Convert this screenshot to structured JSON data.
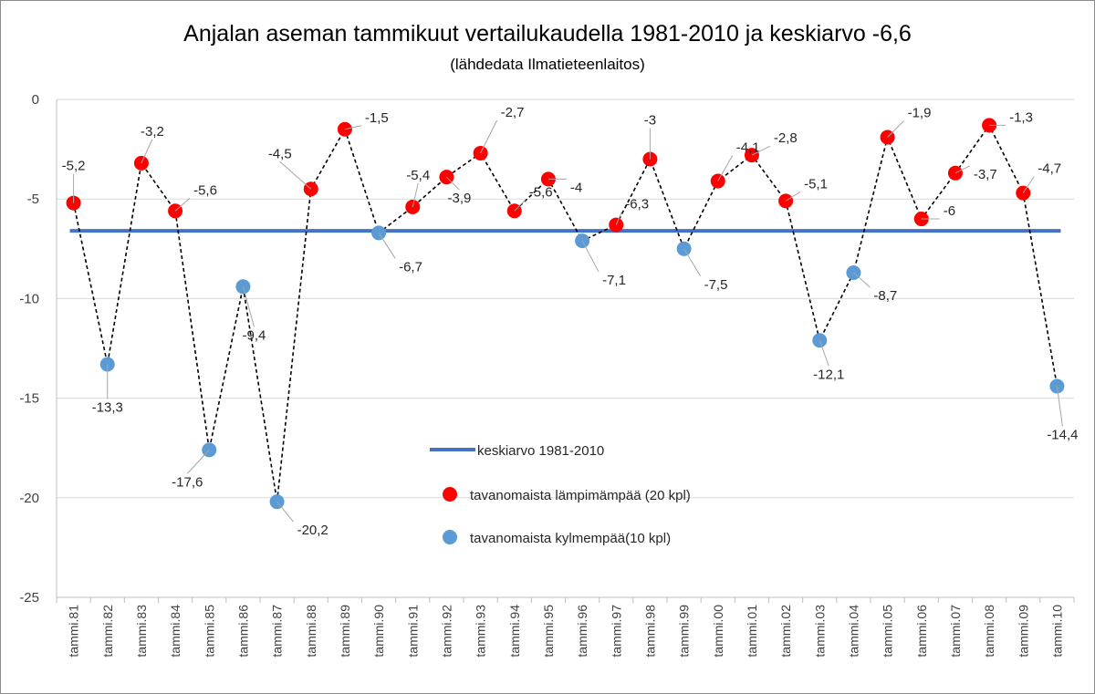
{
  "chart_data": {
    "type": "line",
    "title": "Anjalan aseman tammikuut vertailukaudella 1981-2010 ja keskiarvo -6,6",
    "subtitle": "(lähdedata Ilmatieteenlaitos)",
    "xlabel": "",
    "ylabel": "",
    "ylim": [
      -25,
      0
    ],
    "yticks": [
      0,
      -5,
      -10,
      -15,
      -20,
      -25
    ],
    "grid": true,
    "legend_position": "inside-bottom-center",
    "categories": [
      "tammi.81",
      "tammi.82",
      "tammi.83",
      "tammi.84",
      "tammi.85",
      "tammi.86",
      "tammi.87",
      "tammi.88",
      "tammi.89",
      "tammi.90",
      "tammi.91",
      "tammi.92",
      "tammi.93",
      "tammi.94",
      "tammi.95",
      "tammi.96",
      "tammi.97",
      "tammi.98",
      "tammi.99",
      "tammi.00",
      "tammi.01",
      "tammi.02",
      "tammi.03",
      "tammi.04",
      "tammi.05",
      "tammi.06",
      "tammi.07",
      "tammi.08",
      "tammi.09",
      "tammi.10"
    ],
    "values": [
      -5.2,
      -13.3,
      -3.2,
      -5.6,
      -17.6,
      -9.4,
      -20.2,
      -4.5,
      -1.5,
      -6.7,
      -5.4,
      -3.9,
      -2.7,
      -5.6,
      -4,
      -7.1,
      -6.3,
      -3,
      -7.5,
      -4.1,
      -2.8,
      -5.1,
      -12.1,
      -8.7,
      -1.9,
      -6,
      -3.7,
      -1.3,
      -4.7,
      -14.4
    ],
    "value_labels": [
      "-5,2",
      "-13,3",
      "-3,2",
      "-5,6",
      "-17,6",
      "-9,4",
      "-20,2",
      "-4,5",
      "-1,5",
      "-6,7",
      "-5,4",
      "-3,9",
      "-2,7",
      "-5,6",
      "-4",
      "-7,1",
      "-6,3",
      "-3",
      "-7,5",
      "-4,1",
      "-2,8",
      "-5,1",
      "-12,1",
      "-8,7",
      "-1,9",
      "-6",
      "-3,7",
      "-1,3",
      "-4,7",
      "-14,4"
    ],
    "point_class": [
      "warm",
      "cold",
      "warm",
      "warm",
      "cold",
      "cold",
      "cold",
      "warm",
      "warm",
      "cold",
      "warm",
      "warm",
      "warm",
      "warm",
      "warm",
      "cold",
      "warm",
      "warm",
      "cold",
      "warm",
      "warm",
      "warm",
      "cold",
      "cold",
      "warm",
      "warm",
      "warm",
      "warm",
      "warm",
      "cold"
    ],
    "average": -6.6,
    "legend": [
      {
        "label": "keskiarvo 1981-2010",
        "type": "line",
        "color": "#4472c4"
      },
      {
        "label": "tavanomaista lämpimämpää (20 kpl)",
        "type": "marker",
        "color": "#ff0000"
      },
      {
        "label": "tavanomaista kylmempää(10 kpl)",
        "type": "marker",
        "color": "#5b9bd5"
      }
    ],
    "colors": {
      "warm": "#ff0000",
      "cold": "#5b9bd5",
      "average": "#4472c4",
      "connector": "#000000"
    }
  }
}
